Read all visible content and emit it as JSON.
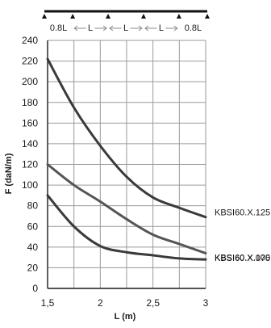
{
  "chart_data": {
    "type": "line",
    "xlabel": "L (m)",
    "ylabel": "F (daN/m)",
    "xlim": [
      1.5,
      3
    ],
    "ylim": [
      0,
      240
    ],
    "x_ticks": [
      1.5,
      2,
      2.5,
      3
    ],
    "x_tick_labels": [
      "1,5",
      "2",
      "2,5",
      "3"
    ],
    "y_ticks": [
      0,
      20,
      40,
      60,
      80,
      100,
      120,
      140,
      160,
      180,
      200,
      220,
      240
    ],
    "grid": true,
    "series": [
      {
        "name": "KBSI60.X.125",
        "color": "#3a3a3a",
        "x": [
          1.5,
          1.75,
          2.0,
          2.25,
          2.5,
          2.75,
          3.0
        ],
        "y": [
          222,
          175,
          138,
          108,
          88,
          78,
          69
        ]
      },
      {
        "name": "KBSI60.X.100",
        "color": "#555555",
        "x": [
          1.5,
          1.75,
          2.0,
          2.25,
          2.5,
          2.75,
          3.0
        ],
        "y": [
          120,
          100,
          84,
          67,
          52,
          43,
          34
        ]
      },
      {
        "name": "KBSI60.X.075",
        "color": "#3a3a3a",
        "x": [
          1.5,
          1.75,
          2.0,
          2.25,
          2.5,
          2.75,
          3.0
        ],
        "y": [
          90,
          60,
          41,
          35,
          32,
          29,
          28
        ]
      }
    ],
    "span_labels": [
      "0.8L",
      "L",
      "L",
      "L",
      "0.8L"
    ]
  }
}
